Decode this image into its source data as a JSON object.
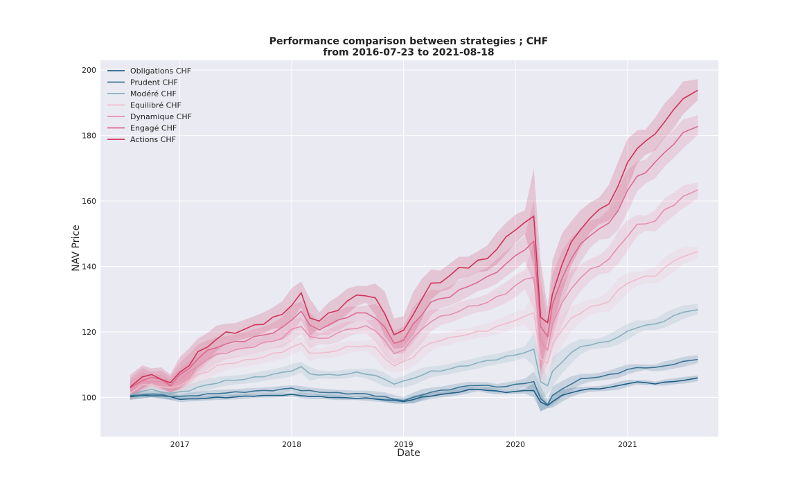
{
  "chart_data": {
    "type": "line",
    "title": "Performance comparison between strategies ; CHF",
    "subtitle": "from 2016-07-23 to 2021-08-18",
    "xlabel": "Date",
    "ylabel": "NAV Price",
    "xlim": [
      "2016-04-17",
      "2021-10-24"
    ],
    "ylim": [
      88,
      203
    ],
    "x_ticks": [
      "2017",
      "2018",
      "2019",
      "2020",
      "2021"
    ],
    "y_ticks": [
      100,
      120,
      140,
      160,
      180,
      200
    ],
    "grid": true,
    "legend_position": "upper left",
    "background": "#eaeaf2",
    "x": [
      "2016-07-23",
      "2016-09-01",
      "2016-10-01",
      "2016-11-01",
      "2016-12-01",
      "2017-01-01",
      "2017-02-01",
      "2017-03-01",
      "2017-04-01",
      "2017-05-01",
      "2017-06-01",
      "2017-07-01",
      "2017-08-01",
      "2017-09-01",
      "2017-10-01",
      "2017-11-01",
      "2017-12-01",
      "2018-01-01",
      "2018-02-01",
      "2018-03-01",
      "2018-04-01",
      "2018-05-01",
      "2018-06-01",
      "2018-07-01",
      "2018-08-01",
      "2018-09-01",
      "2018-10-01",
      "2018-11-01",
      "2018-12-01",
      "2019-01-01",
      "2019-02-01",
      "2019-03-01",
      "2019-04-01",
      "2019-05-01",
      "2019-06-01",
      "2019-07-01",
      "2019-08-01",
      "2019-09-01",
      "2019-10-01",
      "2019-11-01",
      "2019-12-01",
      "2020-01-01",
      "2020-02-01",
      "2020-03-01",
      "2020-03-23",
      "2020-04-15",
      "2020-05-01",
      "2020-06-01",
      "2020-07-01",
      "2020-08-01",
      "2020-09-01",
      "2020-10-01",
      "2020-11-01",
      "2020-12-01",
      "2021-01-01",
      "2021-02-01",
      "2021-03-01",
      "2021-04-01",
      "2021-05-01",
      "2021-06-01",
      "2021-07-01",
      "2021-08-18"
    ],
    "series": [
      {
        "name": "Obligations CHF",
        "color": "#1f5f85",
        "values": [
          100.2,
          100.5,
          100.6,
          100.4,
          100.2,
          99.5,
          99.4,
          99.6,
          99.8,
          99.9,
          100.0,
          100.1,
          100.3,
          100.5,
          100.5,
          100.6,
          100.7,
          100.8,
          100.6,
          100.3,
          100.2,
          100.1,
          99.9,
          99.8,
          99.8,
          99.7,
          99.5,
          99.3,
          99.0,
          98.8,
          99.3,
          100.0,
          100.5,
          100.8,
          101.2,
          101.7,
          102.2,
          102.5,
          102.2,
          101.8,
          101.6,
          101.8,
          102.0,
          102.2,
          98.5,
          97.5,
          98.8,
          100.5,
          101.5,
          102.2,
          102.5,
          102.7,
          103.0,
          103.5,
          104.3,
          104.6,
          104.5,
          104.2,
          104.5,
          104.9,
          105.2,
          105.8
        ]
      },
      {
        "name": "Prudent CHF",
        "color": "#3b7595",
        "values": [
          100.3,
          100.9,
          101.0,
          100.8,
          100.4,
          100.2,
          100.4,
          100.7,
          100.9,
          101.2,
          101.4,
          101.5,
          101.7,
          101.9,
          102.0,
          102.2,
          102.4,
          102.8,
          102.2,
          101.9,
          101.7,
          101.5,
          101.3,
          101.2,
          101.1,
          101.0,
          100.6,
          100.1,
          99.4,
          99.1,
          99.8,
          100.8,
          101.6,
          102.0,
          102.5,
          103.0,
          103.5,
          103.8,
          103.5,
          103.2,
          103.4,
          103.8,
          104.4,
          104.8,
          99.5,
          98.0,
          100.5,
          102.5,
          104.2,
          105.5,
          106.0,
          106.3,
          106.8,
          107.5,
          108.5,
          109.0,
          109.2,
          109.0,
          109.6,
          110.2,
          110.8,
          111.7
        ]
      },
      {
        "name": "Modéré CHF",
        "color": "#88b0be",
        "values": [
          100.8,
          102.0,
          102.2,
          101.8,
          101.2,
          101.5,
          102.2,
          103.0,
          103.8,
          104.5,
          105.0,
          105.3,
          105.6,
          106.0,
          106.5,
          107.0,
          107.5,
          108.3,
          109.2,
          107.2,
          107.0,
          106.8,
          106.9,
          107.2,
          107.5,
          107.3,
          106.6,
          105.4,
          104.3,
          104.8,
          105.8,
          106.9,
          107.8,
          108.2,
          108.7,
          109.3,
          109.9,
          110.5,
          111.2,
          111.7,
          112.3,
          113.0,
          113.8,
          114.5,
          105.0,
          103.5,
          107.8,
          111.0,
          113.5,
          115.5,
          116.2,
          116.5,
          117.2,
          118.5,
          120.0,
          121.5,
          122.0,
          122.3,
          123.5,
          124.8,
          126.0,
          127.0
        ]
      },
      {
        "name": "Equilibré CHF",
        "color": "#f0bccb",
        "values": [
          101.5,
          103.6,
          103.8,
          103.4,
          102.6,
          103.8,
          105.3,
          106.8,
          108.0,
          109.5,
          110.2,
          110.7,
          111.2,
          111.8,
          112.4,
          113.2,
          114.0,
          115.3,
          116.3,
          113.8,
          113.3,
          113.8,
          114.5,
          115.3,
          115.6,
          115.8,
          115.0,
          112.2,
          109.5,
          110.8,
          112.5,
          114.8,
          116.7,
          117.5,
          118.0,
          118.9,
          119.3,
          120.0,
          120.5,
          121.5,
          122.5,
          123.8,
          124.5,
          126.0,
          112.0,
          110.0,
          116.5,
          120.5,
          124.0,
          126.0,
          127.5,
          128.2,
          129.5,
          132.5,
          135.0,
          136.2,
          136.8,
          137.3,
          139.5,
          141.5,
          143.3,
          144.3
        ]
      },
      {
        "name": "Dynamique CHF",
        "color": "#e590ae",
        "values": [
          102.0,
          104.8,
          105.1,
          104.5,
          103.4,
          105.5,
          107.5,
          109.8,
          111.5,
          113.0,
          113.8,
          114.3,
          115.0,
          115.7,
          116.5,
          117.3,
          118.2,
          120.5,
          122.0,
          118.5,
          117.8,
          118.5,
          119.5,
          120.8,
          121.3,
          121.5,
          120.5,
          117.5,
          113.0,
          114.8,
          118.0,
          120.6,
          123.5,
          124.5,
          125.3,
          126.5,
          127.5,
          128.3,
          129.0,
          130.5,
          132.0,
          134.0,
          136.0,
          137.0,
          117.0,
          114.5,
          122.5,
          128.5,
          133.5,
          136.5,
          139.0,
          140.5,
          142.0,
          145.8,
          149.5,
          152.5,
          153.2,
          154.0,
          157.0,
          159.0,
          161.3,
          163.2
        ]
      },
      {
        "name": "Engagé CHF",
        "color": "#dc6a90",
        "values": [
          102.5,
          105.6,
          105.9,
          105.4,
          104.0,
          106.5,
          109.0,
          112.0,
          114.0,
          115.5,
          116.3,
          116.8,
          117.5,
          118.3,
          119.0,
          120.0,
          121.0,
          123.8,
          126.5,
          121.7,
          121.0,
          122.0,
          123.4,
          124.8,
          125.5,
          125.8,
          124.5,
          121.0,
          116.8,
          117.5,
          122.0,
          125.5,
          129.0,
          130.0,
          131.0,
          132.5,
          134.0,
          135.5,
          136.5,
          138.5,
          140.8,
          143.0,
          145.5,
          147.5,
          121.5,
          119.0,
          128.0,
          136.5,
          142.5,
          146.5,
          149.8,
          151.5,
          153.0,
          157.5,
          163.0,
          167.5,
          169.0,
          171.5,
          175.0,
          177.5,
          180.5,
          183.2
        ]
      },
      {
        "name": "Actions CHF",
        "color": "#cf3259",
        "values": [
          103.5,
          106.3,
          106.6,
          106.0,
          104.2,
          107.5,
          110.2,
          113.5,
          115.5,
          118.0,
          119.5,
          120.0,
          120.8,
          121.8,
          122.8,
          124.2,
          125.3,
          128.5,
          131.5,
          124.5,
          123.5,
          125.3,
          127.0,
          129.3,
          131.0,
          131.5,
          130.0,
          125.5,
          119.5,
          120.0,
          125.5,
          130.0,
          134.5,
          135.5,
          137.0,
          139.5,
          140.0,
          141.5,
          142.5,
          145.5,
          148.5,
          151.5,
          153.5,
          155.0,
          125.0,
          122.5,
          131.5,
          141.0,
          147.0,
          151.5,
          155.0,
          157.0,
          159.5,
          164.5,
          171.5,
          176.5,
          178.0,
          180.5,
          184.5,
          187.5,
          191.5,
          194.0
        ]
      }
    ]
  }
}
